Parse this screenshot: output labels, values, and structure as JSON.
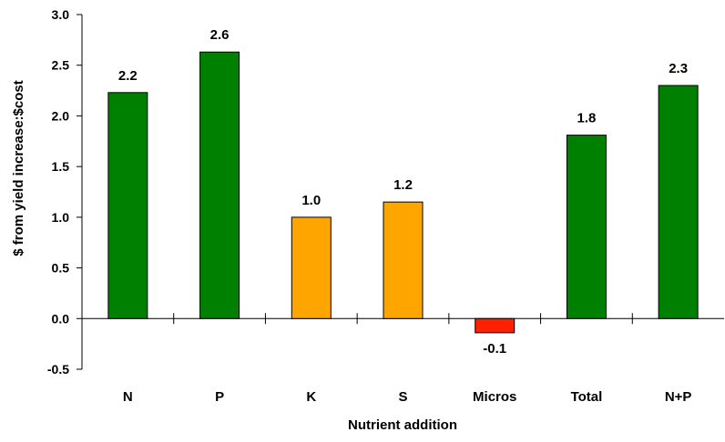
{
  "chart_data": {
    "type": "bar",
    "title": "",
    "xlabel": "Nutrient addition",
    "ylabel": "$ from yield increase:$cost",
    "categories": [
      "N",
      "P",
      "K",
      "S",
      "Micros",
      "Total",
      "N+P"
    ],
    "values": [
      2.23,
      2.63,
      1.0,
      1.15,
      -0.14,
      1.81,
      2.3
    ],
    "data_labels": [
      "2.2",
      "2.6",
      "1.0",
      "1.2",
      "-0.1",
      "1.8",
      "2.3"
    ],
    "bar_colors": [
      "#008000",
      "#008000",
      "#FFA500",
      "#FFA500",
      "#FF2000",
      "#008000",
      "#008000"
    ],
    "ylim": [
      -0.5,
      3.0
    ],
    "yticks": [
      -0.5,
      0.0,
      0.5,
      1.0,
      1.5,
      2.0,
      2.5,
      3.0
    ],
    "ytick_labels": [
      "-0.5",
      "0.0",
      "0.5",
      "1.0",
      "1.5",
      "2.0",
      "2.5",
      "3.0"
    ],
    "grid": false,
    "legend": "none"
  }
}
